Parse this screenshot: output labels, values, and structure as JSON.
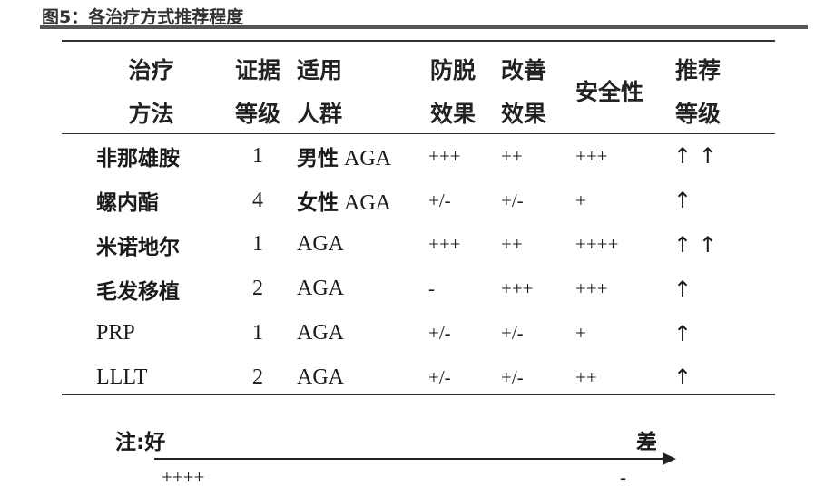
{
  "title": "图5：各治疗方式推荐程度",
  "table": {
    "headers": [
      {
        "line1": "治疗",
        "line2": "方法"
      },
      {
        "line1": "证据",
        "line2": "等级"
      },
      {
        "line1": "适用",
        "line2": "人群"
      },
      {
        "line1": "防脱",
        "line2": "效果"
      },
      {
        "line1": "改善",
        "line2": "效果"
      },
      {
        "line1": "安全性",
        "line2": ""
      },
      {
        "line1": "推荐",
        "line2": "等级"
      }
    ],
    "rows": [
      {
        "method": "非那雄胺",
        "evidence": "1",
        "pop_cn": "男性",
        "pop": "AGA",
        "anti": "+++",
        "improve": "++",
        "safety": "+++",
        "rec": "↑ ↑"
      },
      {
        "method": "螺内酯",
        "evidence": "4",
        "pop_cn": "女性",
        "pop": "AGA",
        "anti": "+/-",
        "improve": "+/-",
        "safety": "+",
        "rec": "↑"
      },
      {
        "method": "米诺地尔",
        "evidence": "1",
        "pop_cn": "",
        "pop": "AGA",
        "anti": "+++",
        "improve": "++",
        "safety": "++++",
        "rec": "↑ ↑"
      },
      {
        "method": "毛发移植",
        "evidence": "2",
        "pop_cn": "",
        "pop": "AGA",
        "anti": "-",
        "improve": "+++",
        "safety": "+++",
        "rec": "↑"
      },
      {
        "method": "PRP",
        "evidence": "1",
        "pop_cn": "",
        "pop": "AGA",
        "anti": "+/-",
        "improve": "+/-",
        "safety": "+",
        "rec": "↑"
      },
      {
        "method": "LLLT",
        "evidence": "2",
        "pop_cn": "",
        "pop": "AGA",
        "anti": "+/-",
        "improve": "+/-",
        "safety": "++",
        "rec": "↑"
      }
    ]
  },
  "note": {
    "label": "注:",
    "good": "好",
    "bad": "差",
    "good_symbol": "++++",
    "bad_symbol": "-"
  }
}
